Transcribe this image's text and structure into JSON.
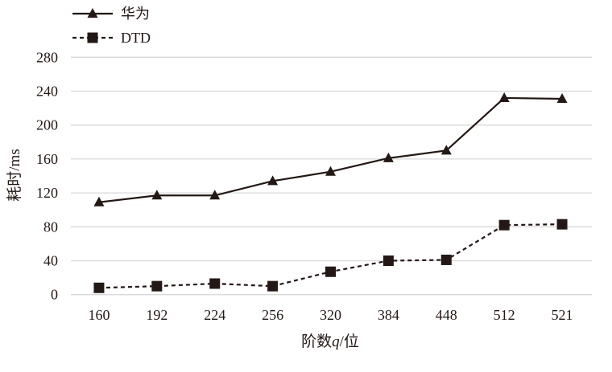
{
  "chart_data": {
    "type": "line",
    "title": "",
    "xlabel": "阶数q/位",
    "xlabel_parts": [
      "阶数",
      "q",
      "/位"
    ],
    "ylabel": "耗时/ms",
    "ylim": [
      0,
      280
    ],
    "yticks": [
      0,
      40,
      80,
      120,
      160,
      200,
      240,
      280
    ],
    "grid": true,
    "legend_position": "top-left",
    "categories": [
      "160",
      "192",
      "224",
      "256",
      "320",
      "384",
      "448",
      "512",
      "521"
    ],
    "series": [
      {
        "name": "华为",
        "marker": "triangle",
        "line": "solid",
        "color": "#231815",
        "values": [
          109,
          117,
          117,
          134,
          145,
          161,
          170,
          232,
          231
        ]
      },
      {
        "name": "DTD",
        "marker": "square",
        "line": "dashed",
        "color": "#231815",
        "values": [
          8,
          10,
          13,
          10,
          27,
          40,
          41,
          82,
          83
        ]
      }
    ]
  }
}
